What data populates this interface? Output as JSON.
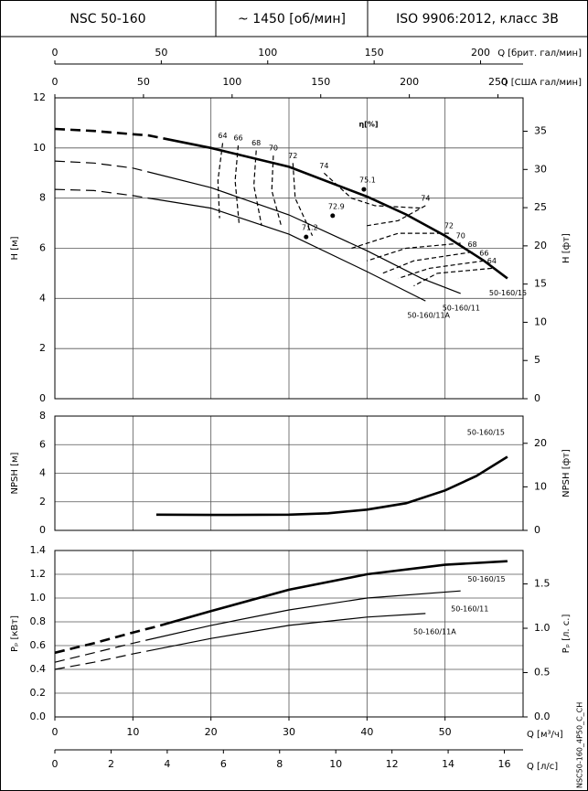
{
  "header": {
    "model": "NSC 50-160",
    "speed": "~ 1450 [об/мин]",
    "standard": "ISO 9906:2012, класс 3В"
  },
  "chart_data": [
    {
      "type": "line",
      "xlim": [
        0,
        60
      ],
      "top_axes": [
        {
          "label": "Q [брит. гал/мин]",
          "xlim": [
            0,
            219.97
          ],
          "xticks": [
            0,
            50,
            100,
            150,
            200
          ]
        },
        {
          "label": "Q [США гал/мин]",
          "xlim": [
            0,
            264.17
          ],
          "xticks": [
            0,
            50,
            100,
            150,
            200,
            250
          ]
        }
      ],
      "ylabel": "H [м]",
      "ylim": [
        0,
        12
      ],
      "yticks": [
        0,
        2,
        4,
        6,
        8,
        10,
        12
      ],
      "y2label": "H [фт]",
      "y2lim": [
        0,
        39.37
      ],
      "y2ticks": [
        0,
        5,
        10,
        15,
        20,
        25,
        30,
        35
      ],
      "annotation": "η[%]",
      "series": [
        {
          "name": "50-160/15",
          "color": "#000000",
          "width": 2.6,
          "x": [
            0,
            5,
            10,
            12,
            20,
            30,
            40,
            45,
            50,
            55,
            58
          ],
          "values": [
            10.76,
            10.68,
            10.55,
            10.5,
            10.0,
            9.25,
            8.06,
            7.35,
            6.5,
            5.5,
            4.8
          ],
          "dashed": [
            true,
            true,
            true,
            true,
            false,
            false,
            false,
            false,
            false,
            false,
            false
          ]
        },
        {
          "name": "50-160/11",
          "color": "#000000",
          "width": 1.2,
          "x": [
            0,
            5,
            10,
            20,
            30,
            40,
            47,
            52
          ],
          "values": [
            9.48,
            9.4,
            9.2,
            8.42,
            7.33,
            5.9,
            4.8,
            4.2
          ],
          "dashed": [
            true,
            true,
            true,
            false,
            false,
            false,
            false,
            false
          ]
        },
        {
          "name": "50-160/11A",
          "color": "#000000",
          "width": 1.2,
          "x": [
            0,
            5,
            10,
            20,
            30,
            40,
            47.5
          ],
          "values": [
            8.35,
            8.3,
            8.1,
            7.6,
            6.56,
            5.07,
            3.9
          ],
          "dashed": [
            true,
            true,
            true,
            false,
            false,
            false,
            false
          ]
        }
      ],
      "efficiency_curves": [
        {
          "name": "64",
          "x": [
            21.5,
            20.9,
            21.1
          ],
          "values": [
            10.2,
            8.7,
            7.2
          ]
        },
        {
          "name": "66",
          "x": [
            23.5,
            23.1,
            23.6
          ],
          "values": [
            10.1,
            8.7,
            7.0
          ]
        },
        {
          "name": "68",
          "x": [
            25.8,
            25.5,
            26.5
          ],
          "values": [
            9.9,
            8.5,
            6.9
          ]
        },
        {
          "name": "70",
          "x": [
            28.0,
            27.8,
            29.0
          ],
          "values": [
            9.7,
            8.3,
            6.9
          ]
        },
        {
          "name": "72",
          "x": [
            30.5,
            30.8,
            33.0
          ],
          "values": [
            9.4,
            8.0,
            6.5
          ]
        },
        {
          "name": "74",
          "x": [
            34.5,
            38.0,
            41.0,
            47.0
          ],
          "values": [
            9.0,
            8.0,
            7.7,
            7.6
          ]
        },
        {
          "name": "74",
          "x": [
            47.5,
            44.0,
            40.0
          ],
          "values": [
            7.7,
            7.1,
            6.9
          ]
        },
        {
          "name": "72",
          "x": [
            50.5,
            44.0,
            38.0
          ],
          "values": [
            6.6,
            6.6,
            6.0
          ]
        },
        {
          "name": "70",
          "x": [
            52.0,
            45.0,
            40.0
          ],
          "values": [
            6.2,
            6.0,
            5.5
          ]
        },
        {
          "name": "68",
          "x": [
            53.5,
            46.0,
            42.0
          ],
          "values": [
            5.85,
            5.5,
            5.0
          ]
        },
        {
          "name": "66",
          "x": [
            55.0,
            48.0,
            44.0
          ],
          "values": [
            5.5,
            5.2,
            4.8
          ]
        },
        {
          "name": "64",
          "x": [
            56.0,
            49.0,
            46.0
          ],
          "values": [
            5.2,
            5.0,
            4.5
          ]
        }
      ],
      "points": [
        {
          "label": "75.1",
          "x": 39.6,
          "value": 8.35
        },
        {
          "label": "72.9",
          "x": 35.6,
          "value": 7.3
        },
        {
          "label": "71.2",
          "x": 32.2,
          "value": 6.45
        }
      ]
    },
    {
      "type": "line",
      "xlim": [
        0,
        60
      ],
      "ylabel": "NPSH [м]",
      "ylim": [
        0,
        8
      ],
      "yticks": [
        0,
        2,
        4,
        6,
        8
      ],
      "y2label": "NPSH [фт]",
      "y2lim": [
        0,
        26.25
      ],
      "y2ticks": [
        0,
        10,
        20
      ],
      "series": [
        {
          "name": "50-160/15",
          "color": "#000000",
          "width": 2.6,
          "x": [
            13,
            20,
            30,
            35,
            40,
            45,
            50,
            54,
            58
          ],
          "values": [
            1.1,
            1.08,
            1.1,
            1.2,
            1.45,
            1.9,
            2.8,
            3.8,
            5.15
          ],
          "dashed": [
            false,
            false,
            false,
            false,
            false,
            false,
            false,
            false,
            false
          ]
        }
      ]
    },
    {
      "type": "line",
      "xlim": [
        0,
        60
      ],
      "ylabel": "Pₚ [кВт]",
      "ylim": [
        0,
        1.4
      ],
      "yticks": [
        {
          "value": 0,
          "label": "0.0"
        },
        0.2,
        0.4,
        0.6,
        0.8,
        {
          "value": 1,
          "label": "1.0"
        },
        1.2,
        1.4
      ],
      "y2label": "Pₚ [л. с.]",
      "y2lim": [
        0,
        1.877
      ],
      "y2ticks": [
        {
          "value": 0,
          "label": "0.0"
        },
        0.5,
        {
          "value": 1,
          "label": "1.0"
        },
        1.5
      ],
      "series": [
        {
          "name": "50-160/15",
          "color": "#000000",
          "width": 2.6,
          "x": [
            0,
            5,
            10,
            13,
            20,
            30,
            40,
            50,
            58
          ],
          "values": [
            0.54,
            0.62,
            0.71,
            0.76,
            0.89,
            1.07,
            1.2,
            1.28,
            1.31
          ],
          "dashed": [
            true,
            true,
            true,
            true,
            false,
            false,
            false,
            false,
            false
          ]
        },
        {
          "name": "50-160/11",
          "color": "#000000",
          "width": 1.2,
          "x": [
            0,
            5,
            10,
            20,
            30,
            40,
            52
          ],
          "values": [
            0.46,
            0.54,
            0.62,
            0.77,
            0.9,
            1.0,
            1.06
          ],
          "dashed": [
            true,
            true,
            true,
            false,
            false,
            false,
            false
          ]
        },
        {
          "name": "50-160/11A",
          "color": "#000000",
          "width": 1.2,
          "x": [
            0,
            5,
            10,
            20,
            30,
            40,
            47.5
          ],
          "values": [
            0.4,
            0.46,
            0.53,
            0.66,
            0.77,
            0.84,
            0.87
          ],
          "dashed": [
            true,
            true,
            true,
            false,
            false,
            false,
            false
          ]
        }
      ],
      "bottom_axes": [
        {
          "label": "Q [м³/ч]",
          "xlim": [
            0,
            60
          ],
          "xticks": [
            0,
            10,
            20,
            30,
            40,
            50
          ]
        },
        {
          "label": "Q [л/с]",
          "xlim": [
            0,
            16.667
          ],
          "xticks": [
            0,
            2,
            4,
            6,
            8,
            10,
            12,
            14,
            16
          ]
        }
      ]
    }
  ],
  "footer_code": "NSC50-160_4P50_C_CH"
}
